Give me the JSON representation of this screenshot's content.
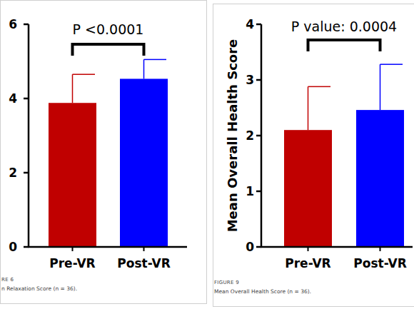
{
  "chart_data": [
    {
      "type": "bar",
      "categories": [
        "Pre-VR",
        "Post-VR"
      ],
      "values": [
        3.88,
        4.53
      ],
      "errors": [
        0.77,
        0.52
      ],
      "colors": [
        "#c00000",
        "#0000ff"
      ],
      "ylim": [
        0,
        6
      ],
      "yticks": [
        0,
        2,
        4,
        6
      ],
      "annotation": "P <0.0001",
      "figure_label": "RE 6",
      "caption": "n Relaxation Score (n = 36)."
    },
    {
      "type": "bar",
      "categories": [
        "Pre-VR",
        "Post-VR"
      ],
      "values": [
        2.1,
        2.46
      ],
      "errors": [
        0.78,
        0.82
      ],
      "colors": [
        "#c00000",
        "#0000ff"
      ],
      "ylim": [
        0,
        4
      ],
      "yticks": [
        0,
        1,
        2,
        3,
        4
      ],
      "y_label": "Mean Overall Health Score",
      "annotation": "P value: 0.0004",
      "figure_label": "FIGURE 9",
      "caption": "Mean Overall Health Score (n = 36)."
    }
  ]
}
